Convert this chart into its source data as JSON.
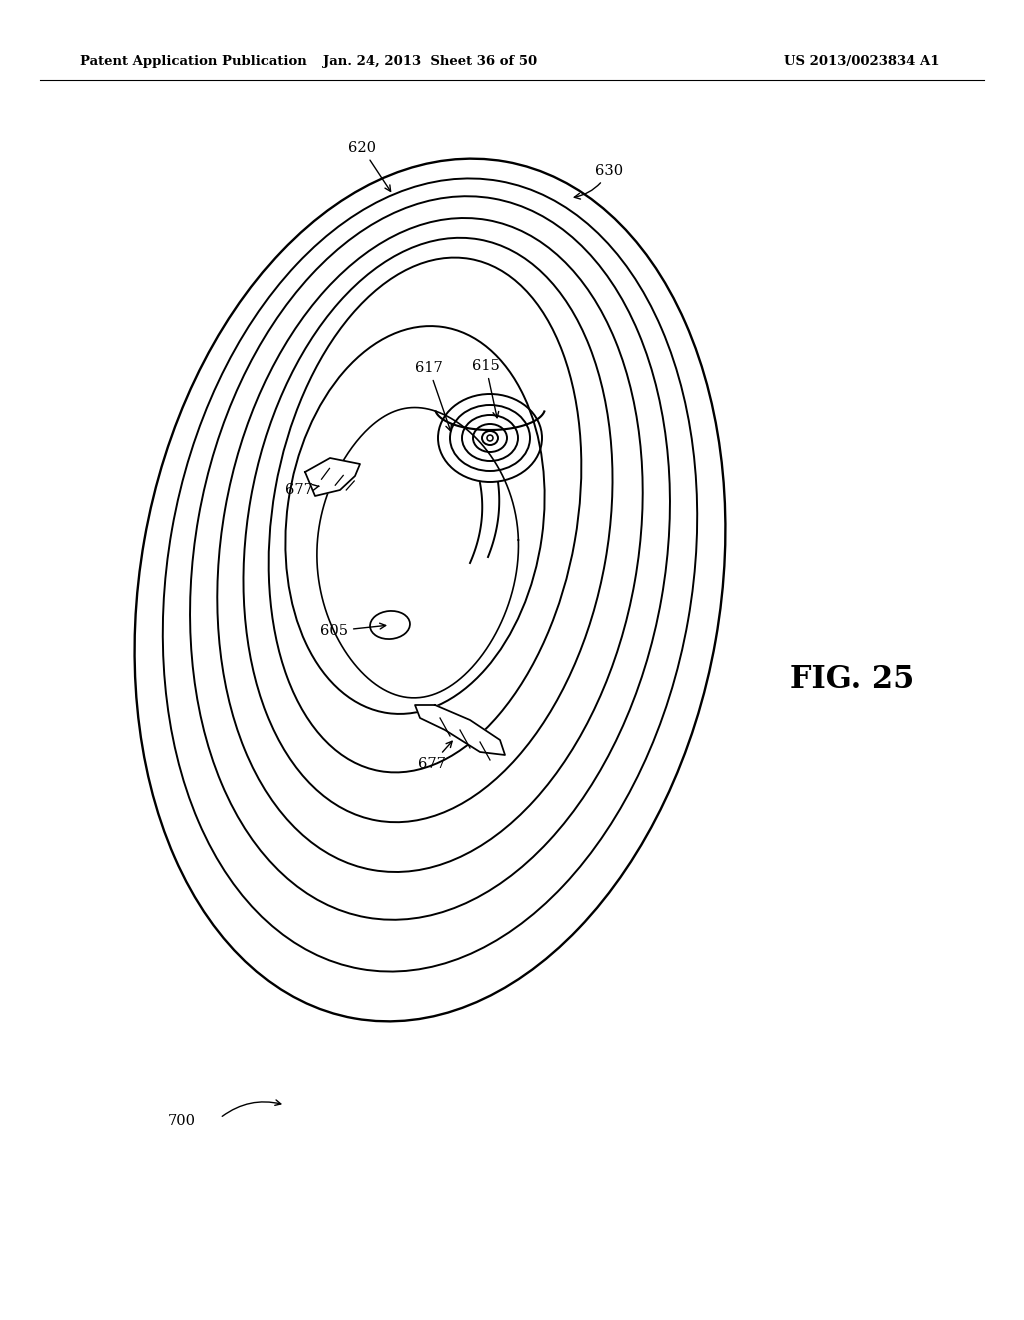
{
  "background_color": "#ffffff",
  "header_left": "Patent Application Publication",
  "header_center": "Jan. 24, 2013  Sheet 36 of 50",
  "header_right": "US 2013/0023834 A1",
  "fig_label": "FIG. 25",
  "line_color": "#000000",
  "lw": 1.4
}
